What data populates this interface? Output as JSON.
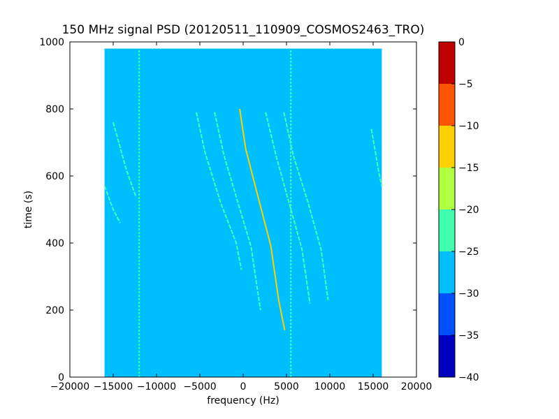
{
  "chart_data": {
    "type": "heatmap",
    "title": "150 MHz signal PSD (20120511_110909_COSMOS2463_TRO)",
    "xlabel": "frequency (Hz)",
    "ylabel": "time (s)",
    "xlim": [
      -20000,
      20000
    ],
    "ylim": [
      0,
      1000
    ],
    "x_ticks": [
      -20000,
      -15000,
      -10000,
      -5000,
      0,
      5000,
      10000,
      15000,
      20000
    ],
    "y_ticks": [
      0,
      200,
      400,
      600,
      800,
      1000
    ],
    "data_extent": {
      "x": [
        -16000,
        16000
      ],
      "y": [
        0,
        980
      ]
    },
    "background_level_range": [
      -30,
      -25
    ],
    "colorbar": {
      "levels": [
        -40,
        -35,
        -30,
        -25,
        -20,
        -15,
        -10,
        -5,
        0
      ],
      "tick_labels": [
        "-40",
        "-35",
        "-30",
        "-25",
        "-20",
        "-15",
        "-10",
        "-5",
        "0"
      ],
      "colors": [
        "#0000c0",
        "#0050ff",
        "#00bfff",
        "#40ffb0",
        "#b0ff40",
        "#ffd000",
        "#ff5500",
        "#c00000"
      ]
    },
    "vertical_lines": [
      {
        "x": -12000,
        "y_range": [
          0,
          980
        ],
        "level_range": [
          -25,
          -20
        ]
      },
      {
        "x": 5500,
        "y_range": [
          0,
          980
        ],
        "level_range": [
          -25,
          -20
        ]
      }
    ],
    "series": [
      {
        "level_range": [
          -15,
          -10
        ],
        "points": [
          [
            -400,
            800
          ],
          [
            300,
            680
          ],
          [
            1800,
            530
          ],
          [
            3200,
            390
          ],
          [
            4100,
            230
          ],
          [
            4800,
            140
          ]
        ]
      },
      {
        "level_range": [
          -25,
          -20
        ],
        "points": [
          [
            -3300,
            790
          ],
          [
            -2200,
            660
          ],
          [
            -600,
            520
          ],
          [
            900,
            390
          ],
          [
            2000,
            200
          ]
        ]
      },
      {
        "level_range": [
          -25,
          -20
        ],
        "points": [
          [
            -5400,
            790
          ],
          [
            -4400,
            670
          ],
          [
            -2600,
            520
          ],
          [
            -800,
            400
          ],
          [
            -200,
            320
          ]
        ]
      },
      {
        "level_range": [
          -25,
          -20
        ],
        "points": [
          [
            2600,
            790
          ],
          [
            3800,
            660
          ],
          [
            5300,
            520
          ],
          [
            6800,
            380
          ],
          [
            7700,
            220
          ]
        ]
      },
      {
        "level_range": [
          -25,
          -20
        ],
        "points": [
          [
            4700,
            790
          ],
          [
            5800,
            660
          ],
          [
            7500,
            520
          ],
          [
            9000,
            380
          ],
          [
            9800,
            230
          ]
        ]
      },
      {
        "level_range": [
          -25,
          -20
        ],
        "points": [
          [
            14800,
            740
          ],
          [
            15600,
            620
          ],
          [
            16000,
            570
          ]
        ]
      },
      {
        "level_range": [
          -25,
          -20
        ],
        "points": [
          [
            -16000,
            570
          ],
          [
            -15000,
            500
          ],
          [
            -14200,
            460
          ]
        ]
      },
      {
        "level_range": [
          -25,
          -20
        ],
        "points": [
          [
            -15000,
            760
          ],
          [
            -13500,
            620
          ],
          [
            -12400,
            540
          ]
        ]
      }
    ]
  }
}
